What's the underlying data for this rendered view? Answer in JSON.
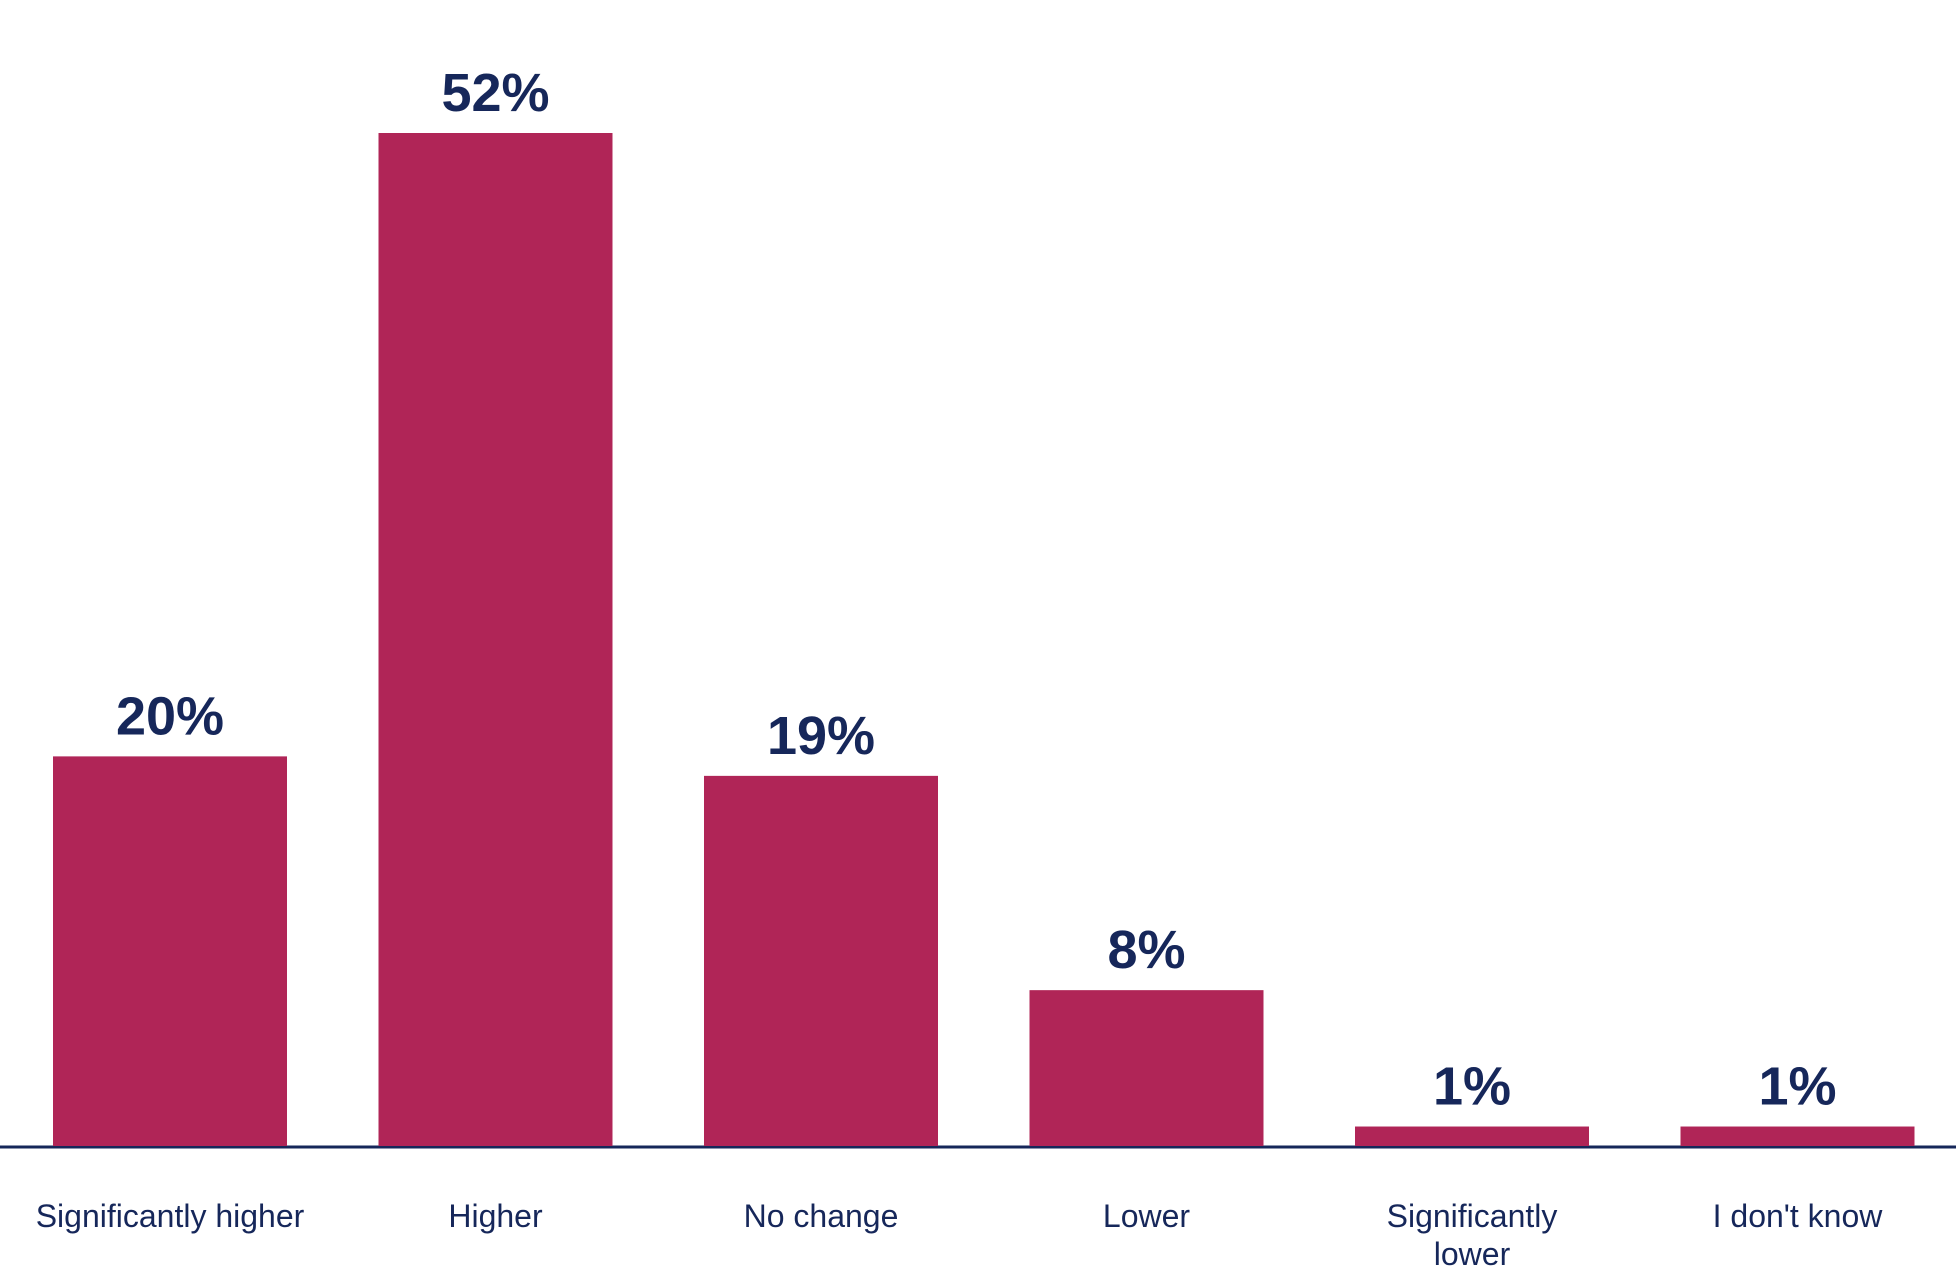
{
  "chart_data": {
    "type": "bar",
    "categories": [
      "Significantly higher",
      "Higher",
      "No change",
      "Lower",
      "Significantly lower",
      "I don't know"
    ],
    "values": [
      20,
      52,
      19,
      8,
      1,
      1
    ],
    "value_labels": [
      "20%",
      "52%",
      "19%",
      "8%",
      "1%",
      "1%"
    ],
    "color": "#b02557"
  }
}
